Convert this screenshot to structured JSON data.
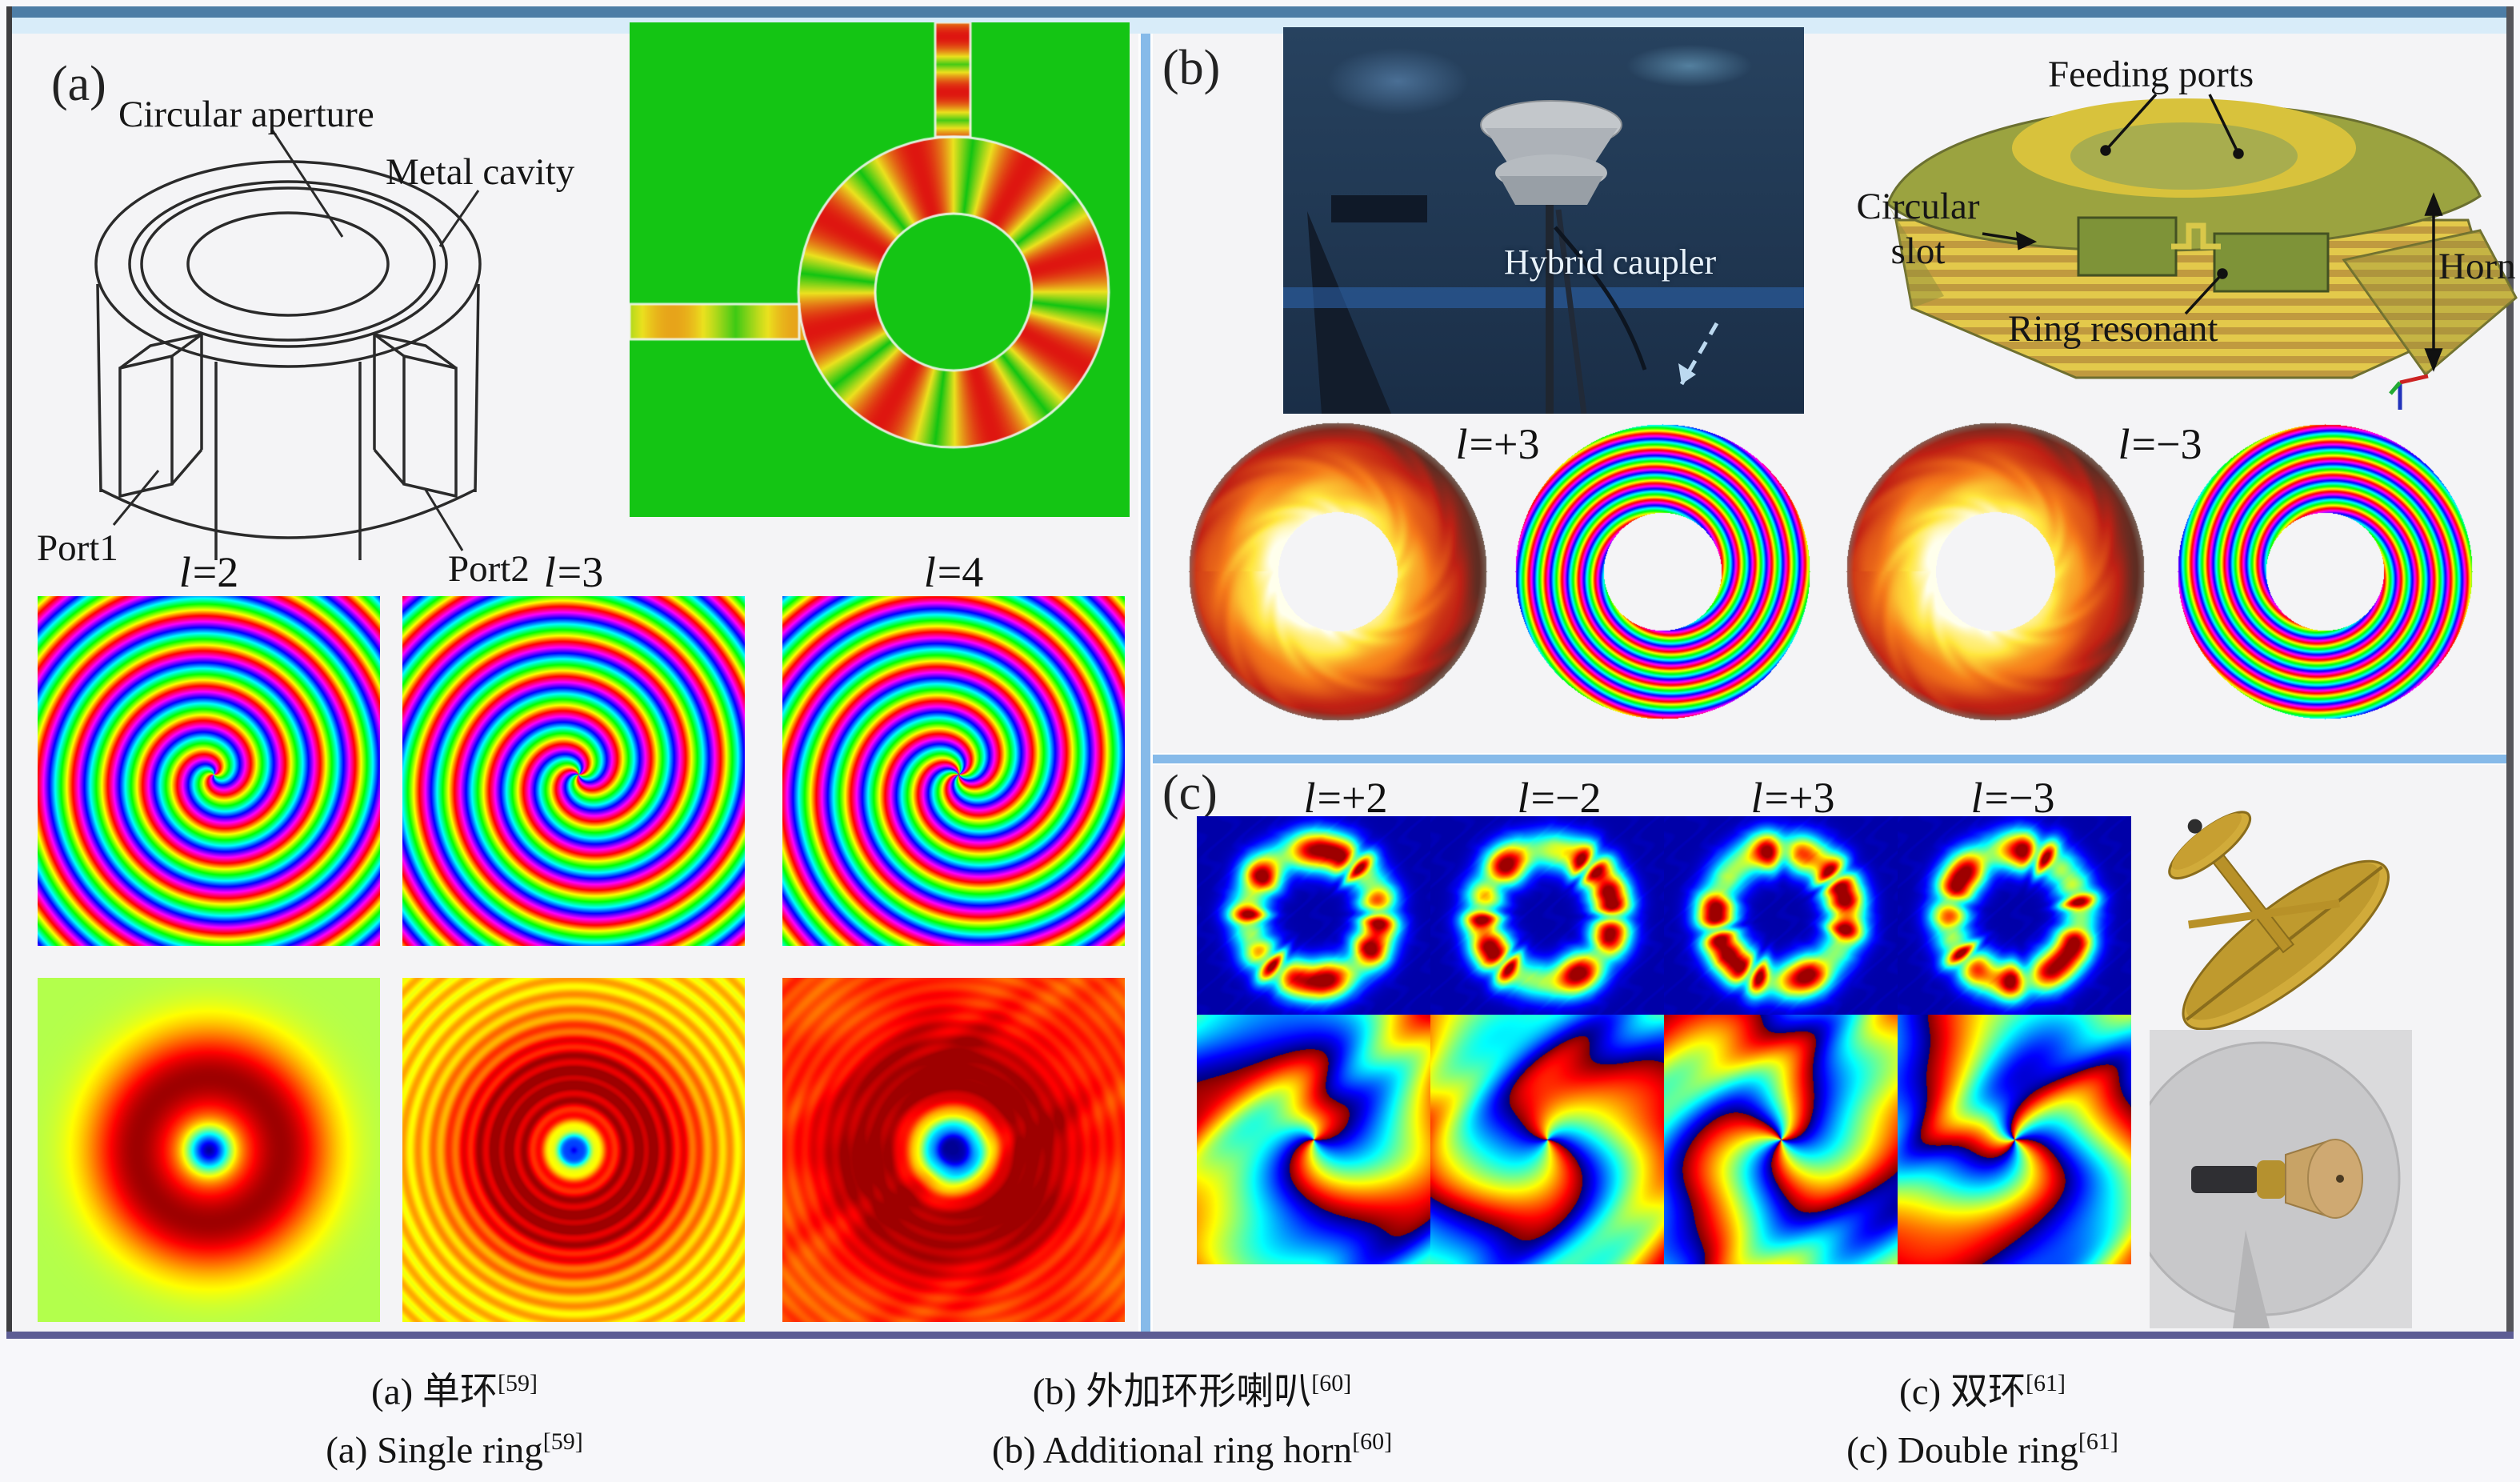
{
  "figure": {
    "panel_a": {
      "tag": "(a)",
      "diagram": {
        "circular_aperture": "Circular aperture",
        "metal_cavity": "Metal cavity",
        "port1": "Port1",
        "port2": "Port2"
      },
      "modes": [
        {
          "var": "l",
          "eq": "=2",
          "l": 2
        },
        {
          "var": "l",
          "eq": "=3",
          "l": 3
        },
        {
          "var": "l",
          "eq": "=4",
          "l": 4
        }
      ],
      "caption": {
        "cn": "(a) 单环",
        "cn_ref": "[59]",
        "en": "(a) Single ring",
        "en_ref": "[59]"
      }
    },
    "panel_b": {
      "tag": "(b)",
      "photo_label": "Hybrid caupler",
      "model": {
        "feeding_ports": "Feeding ports",
        "circular_slot": "Circular slot",
        "ring_resonant": "Ring resonant",
        "horn": "Horn"
      },
      "modes": [
        {
          "var": "l",
          "eq": "=+3",
          "l": 3
        },
        {
          "var": "l",
          "eq": "=−3",
          "l": -3
        }
      ],
      "caption": {
        "cn": "(b) 外加环形喇叭",
        "cn_ref": "[60]",
        "en": "(b) Additional ring horn",
        "en_ref": "[60]"
      }
    },
    "panel_c": {
      "tag": "(c)",
      "modes": [
        {
          "var": "l",
          "eq": "=+2",
          "l": 2
        },
        {
          "var": "l",
          "eq": "=−2",
          "l": -2
        },
        {
          "var": "l",
          "eq": "=+3",
          "l": 3
        },
        {
          "var": "l",
          "eq": "=−3",
          "l": -3
        }
      ],
      "caption": {
        "cn": "(c) 双环",
        "cn_ref": "[61]",
        "en": "(c) Double ring",
        "en_ref": "[61]"
      }
    },
    "colors": {
      "frame_top": "#4d7da6",
      "frame_strip": "#d8ecf9",
      "divider": "#86bae9",
      "frame_bottom": "#5d5d94",
      "sim_background_green": "#14c414",
      "measurement_navy": "#000080"
    }
  }
}
